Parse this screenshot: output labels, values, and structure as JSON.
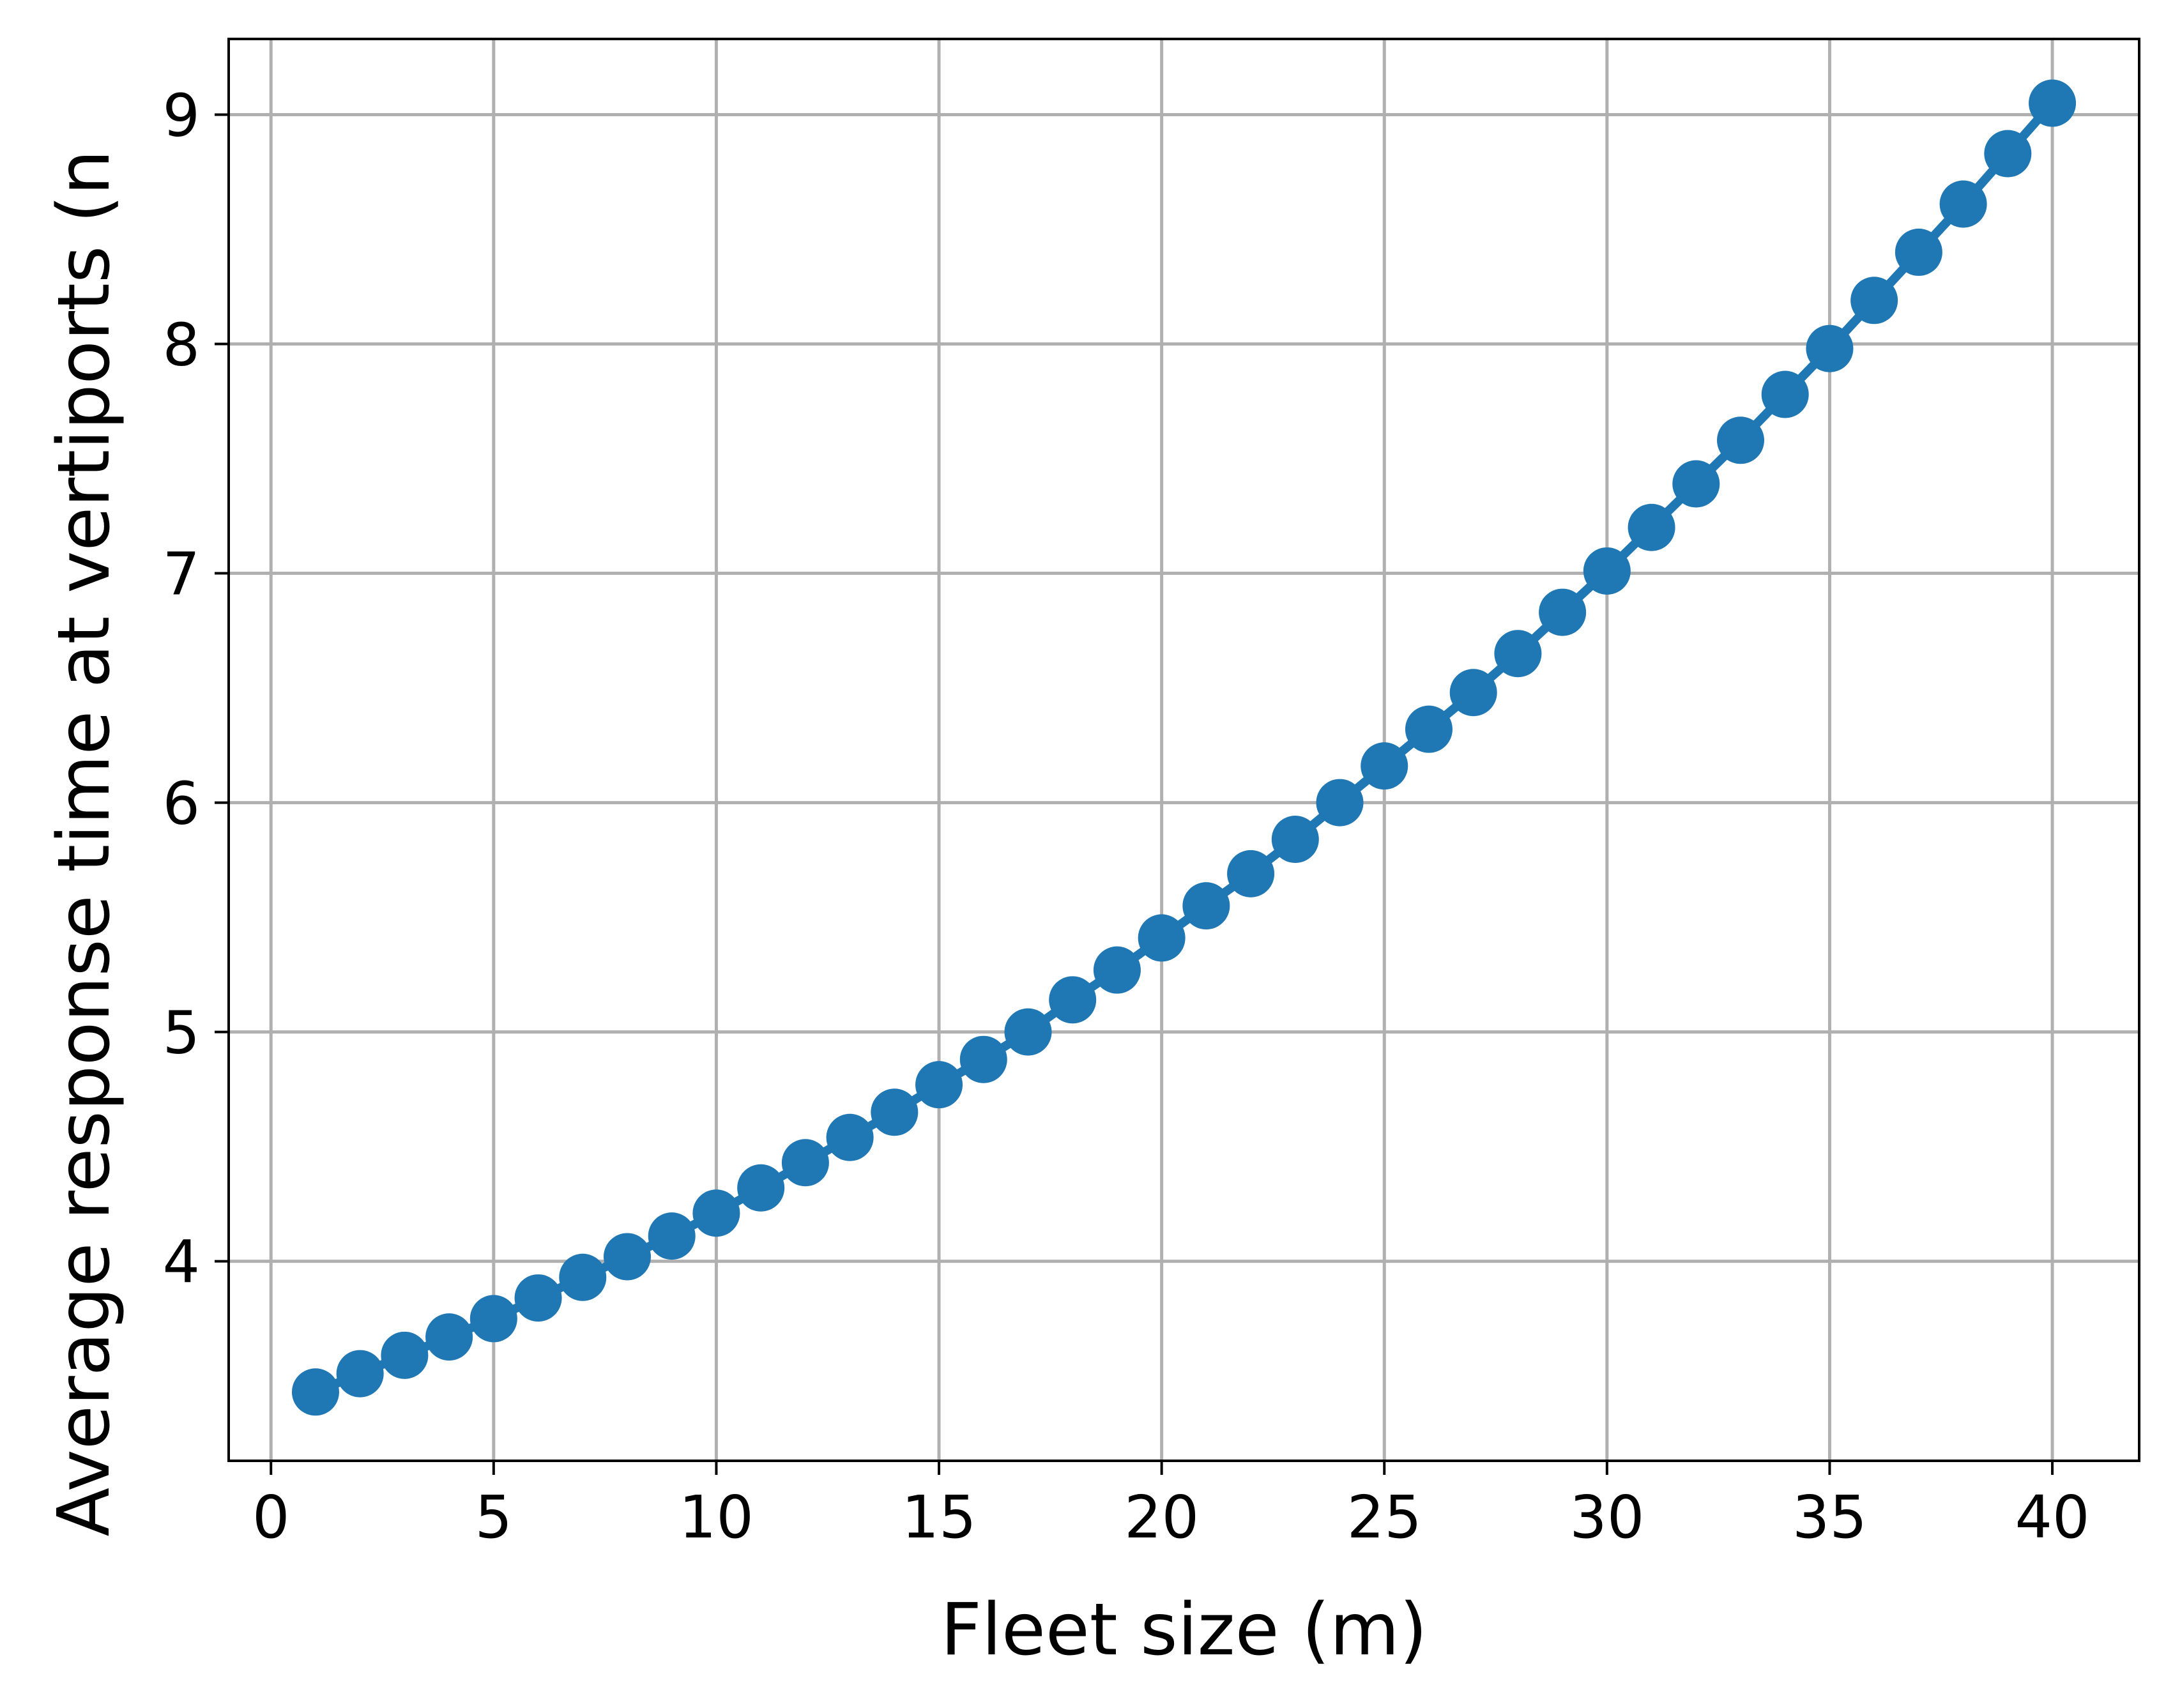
{
  "chart_data": {
    "type": "line",
    "xlabel": "Fleet size (m)",
    "ylabel": "Average response time at vertiports (n",
    "xlim": [
      -0.95,
      41.95
    ],
    "ylim": [
      3.13,
      9.33
    ],
    "xticks": [
      0,
      5,
      10,
      15,
      20,
      25,
      30,
      35,
      40
    ],
    "yticks": [
      4,
      5,
      6,
      7,
      8,
      9
    ],
    "grid": true,
    "series": [
      {
        "color": "#1f77b4",
        "marker": "circle",
        "x": [
          1,
          2,
          3,
          4,
          5,
          6,
          7,
          8,
          9,
          10,
          11,
          12,
          13,
          14,
          15,
          16,
          17,
          18,
          19,
          20,
          21,
          22,
          23,
          24,
          25,
          26,
          27,
          28,
          29,
          30,
          31,
          32,
          33,
          34,
          35,
          36,
          37,
          38,
          39,
          40
        ],
        "y": [
          3.43,
          3.51,
          3.59,
          3.67,
          3.75,
          3.84,
          3.93,
          4.02,
          4.11,
          4.21,
          4.32,
          4.43,
          4.54,
          4.65,
          4.77,
          4.88,
          5.0,
          5.14,
          5.27,
          5.41,
          5.55,
          5.69,
          5.84,
          6.0,
          6.16,
          6.32,
          6.48,
          6.65,
          6.83,
          7.01,
          7.2,
          7.39,
          7.58,
          7.78,
          7.98,
          8.19,
          8.4,
          8.61,
          8.83,
          9.05
        ]
      }
    ]
  },
  "colors": {
    "series": "#1f77b4",
    "grid": "#b0b0b0",
    "axes": "#000000"
  }
}
